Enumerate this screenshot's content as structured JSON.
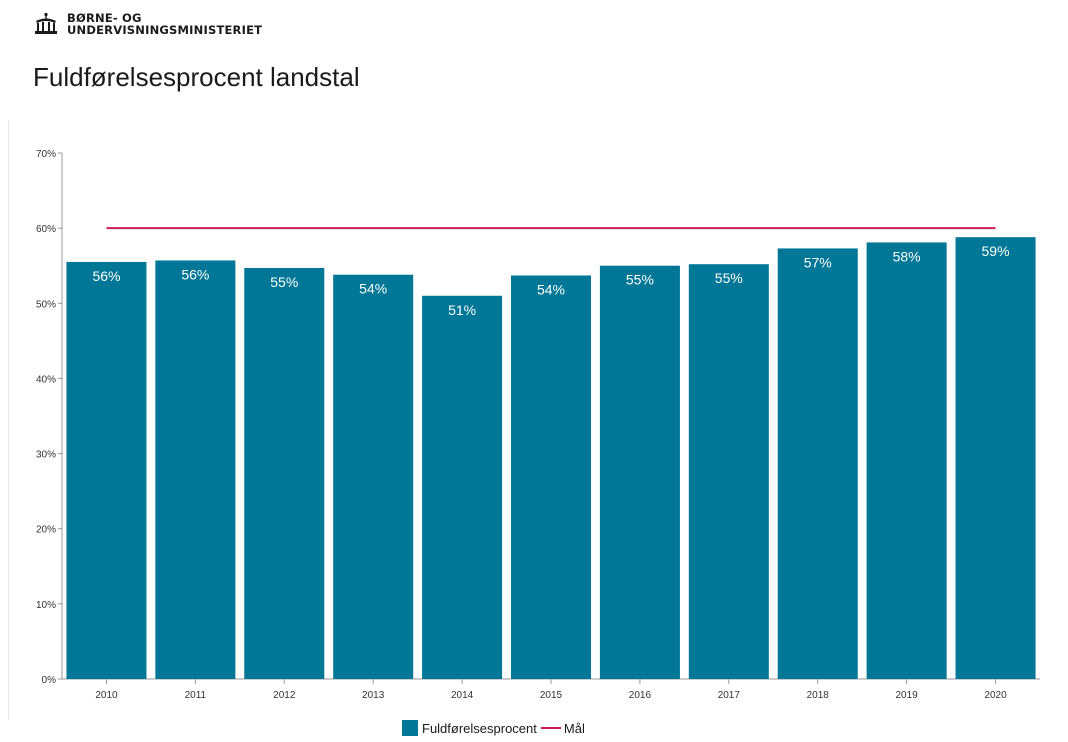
{
  "header": {
    "logo_line1": "BØRNE- OG",
    "logo_line2": "UNDERVISNINGSMINISTERIET",
    "title": "Fuldførelsesprocent landstal"
  },
  "colors": {
    "bar": "#007796",
    "target": "#cc1e54",
    "label": "#ffffff",
    "axis": "#999999",
    "tick_text": "#333333"
  },
  "legend": {
    "bar_label": "Fuldførelsesprocent",
    "line_label": "Mål"
  },
  "chart_data": {
    "type": "bar",
    "categories": [
      "2010",
      "2011",
      "2012",
      "2013",
      "2014",
      "2015",
      "2016",
      "2017",
      "2018",
      "2019",
      "2020"
    ],
    "series": [
      {
        "name": "Fuldførelsesprocent",
        "type": "bar",
        "values": [
          55.5,
          55.7,
          54.7,
          53.8,
          51.0,
          53.7,
          55.0,
          55.2,
          57.3,
          58.1,
          58.8
        ],
        "labels": [
          "56%",
          "56%",
          "55%",
          "54%",
          "51%",
          "54%",
          "55%",
          "55%",
          "57%",
          "58%",
          "59%"
        ]
      },
      {
        "name": "Mål",
        "type": "line",
        "values": [
          60,
          60,
          60,
          60,
          60,
          60,
          60,
          60,
          60,
          60,
          60
        ]
      }
    ],
    "yticks": [
      "0%",
      "10%",
      "20%",
      "30%",
      "40%",
      "50%",
      "60%",
      "70%"
    ],
    "ylim": [
      0,
      70
    ],
    "grid": false,
    "legend_position": "bottom-center"
  }
}
